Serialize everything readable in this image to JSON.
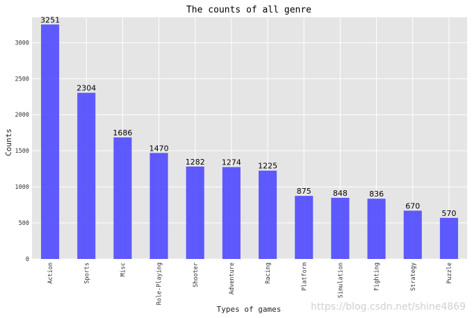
{
  "watermark": "https://blog.csdn.net/shine4869",
  "chart_data": {
    "type": "bar",
    "title": "The counts of all genre",
    "xlabel": "Types of games",
    "ylabel": "Counts",
    "categories": [
      "Action",
      "Sports",
      "Misc",
      "Role-Playing",
      "Shooter",
      "Adventure",
      "Racing",
      "Platform",
      "Simulation",
      "Fighting",
      "Strategy",
      "Puzzle"
    ],
    "values": [
      3251,
      2304,
      1686,
      1470,
      1282,
      1274,
      1225,
      875,
      848,
      836,
      670,
      570
    ],
    "ylim": [
      0,
      3350
    ],
    "yticks": [
      0,
      500,
      1000,
      1500,
      2000,
      2500,
      3000
    ],
    "grid": true,
    "colors": {
      "bar": "#4b45ff",
      "plot_bg": "#e5e5e5",
      "grid": "#ffffff"
    }
  }
}
